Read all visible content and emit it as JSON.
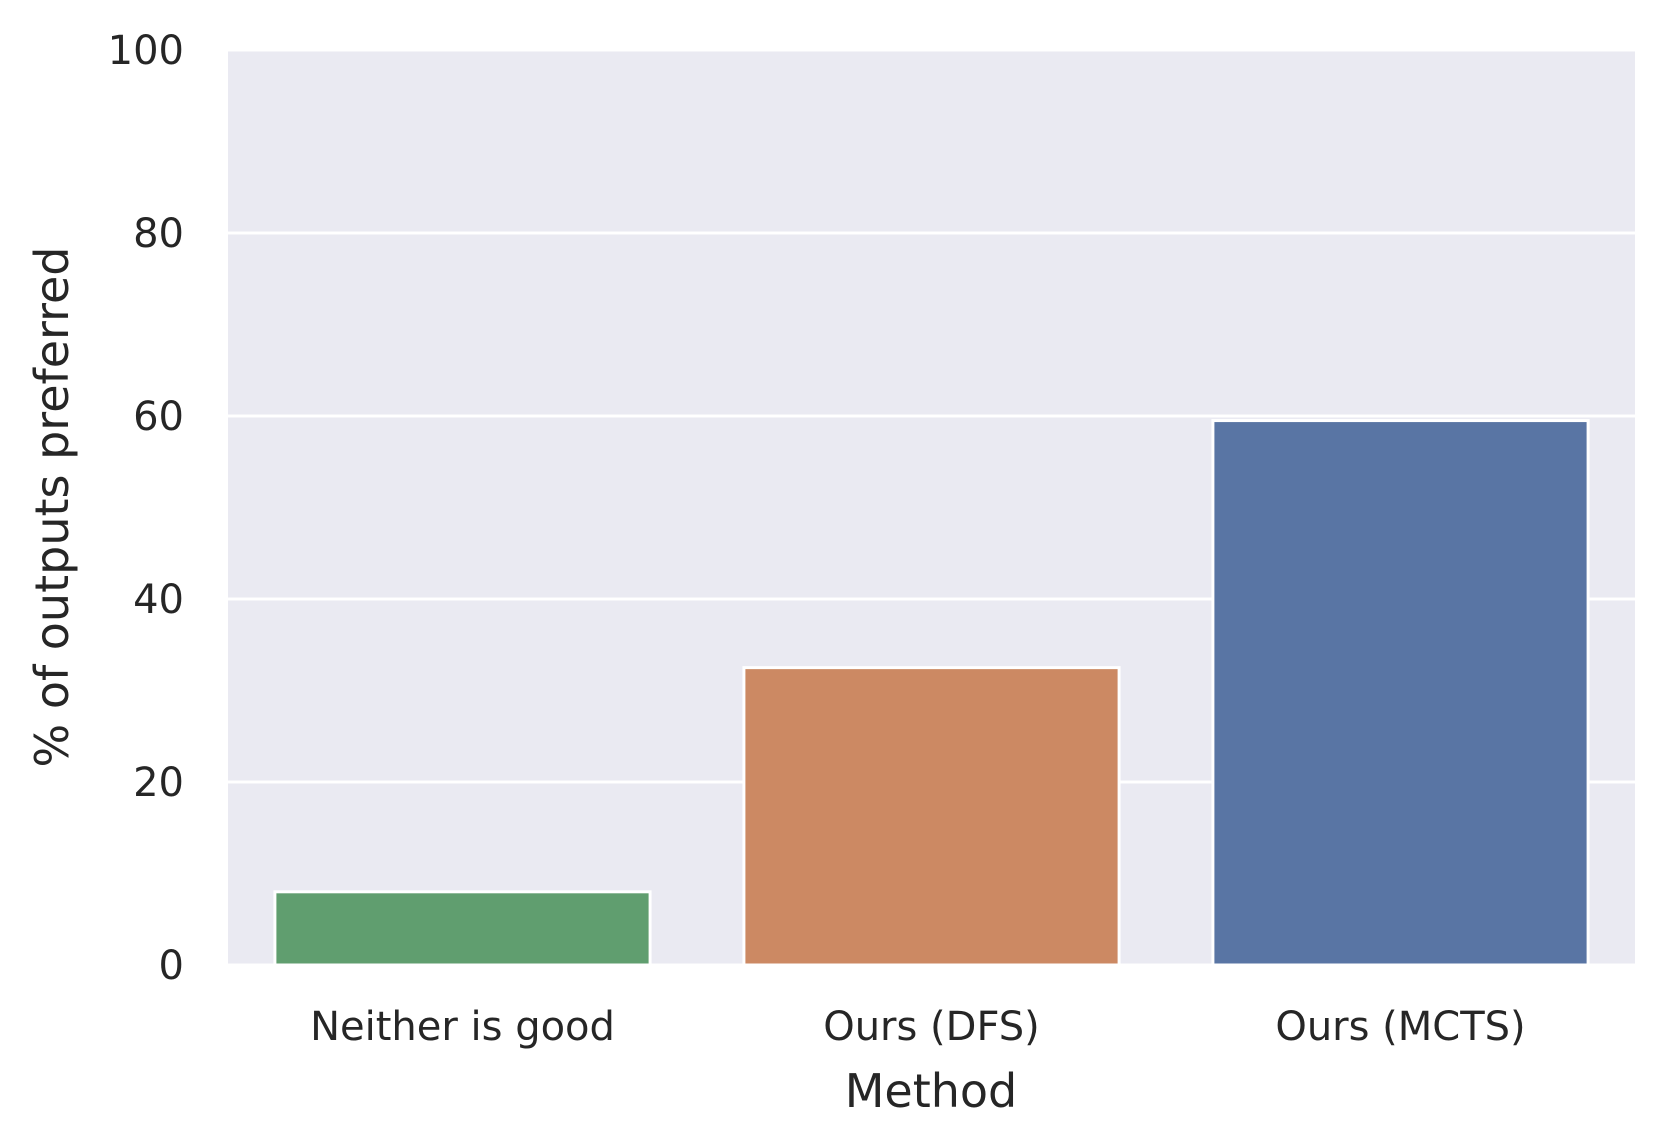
{
  "chart_data": {
    "type": "bar",
    "title": "",
    "xlabel": "Method",
    "ylabel": "% of outputs preferred",
    "categories": [
      "Neither is good",
      "Ours (DFS)",
      "Ours (MCTS)"
    ],
    "values": [
      8.0,
      32.5,
      59.5
    ],
    "bar_colors": [
      "#609e6f",
      "#cc8963",
      "#5975a4"
    ],
    "ylim": [
      0,
      100
    ],
    "yticks": [
      "0",
      "20",
      "40",
      "60",
      "80",
      "100"
    ],
    "grid": true,
    "legend": "none",
    "background_color": "#eaeaf2",
    "grid_color": "#ffffff"
  }
}
